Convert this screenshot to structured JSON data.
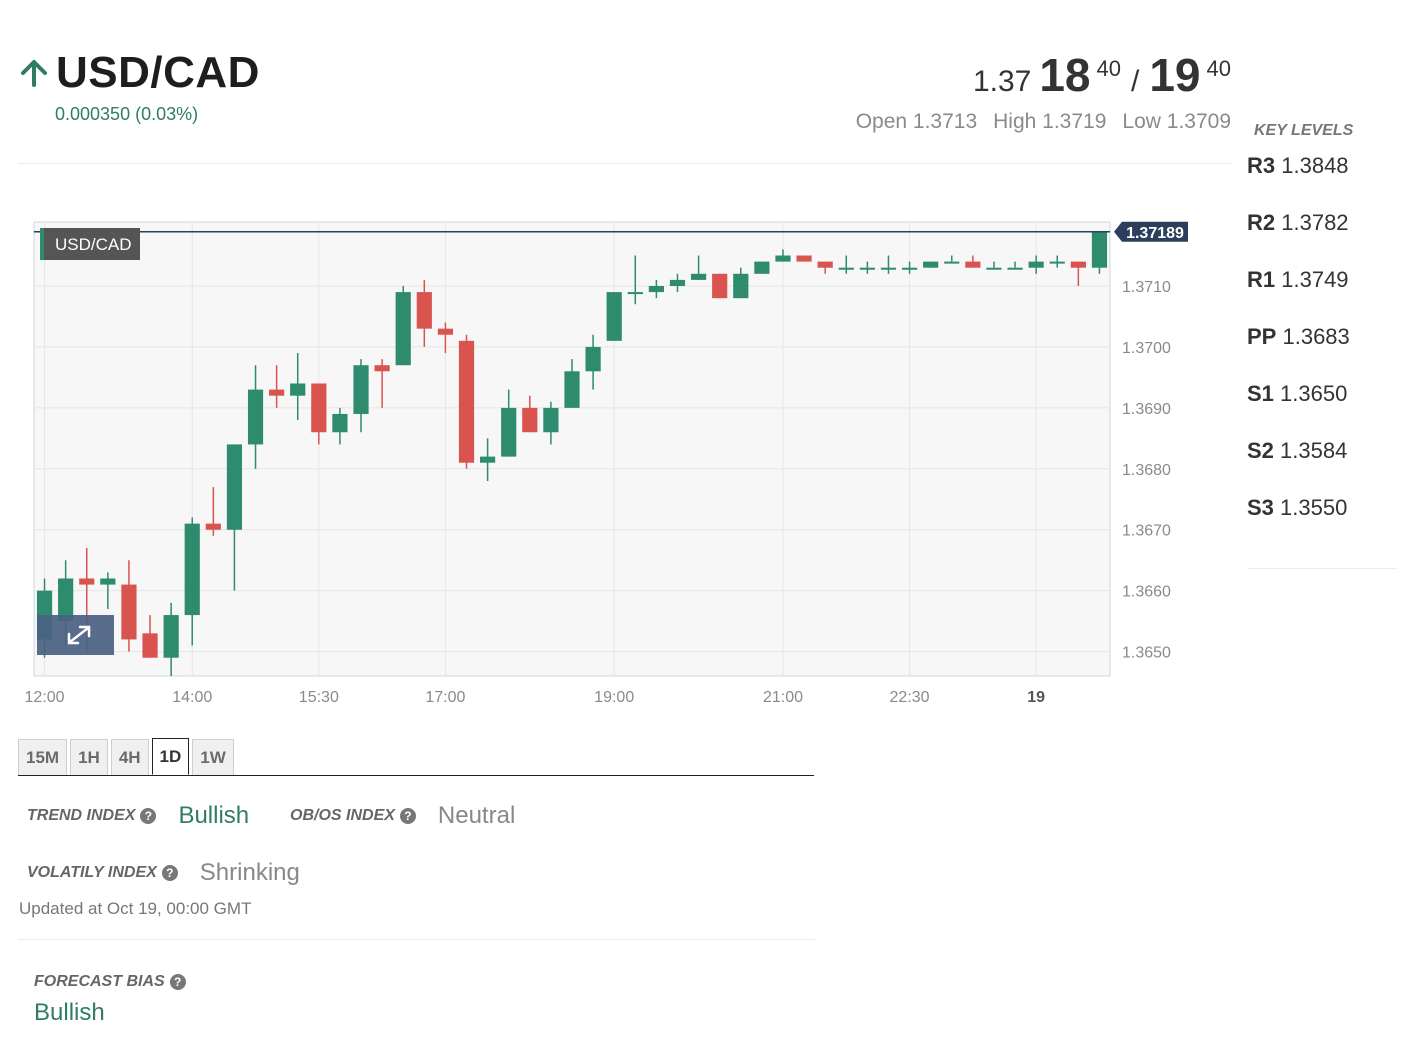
{
  "instrument": {
    "name": "USD/CAD",
    "direction_icon": "arrow-up-icon",
    "change": "0.000350 (0.03%)",
    "accent_color": "#2f7d63"
  },
  "quote": {
    "bid_prefix": "1.37",
    "bid_big": "18",
    "bid_sup": "40",
    "separator": "/",
    "ask_big": "19",
    "ask_sup": "40",
    "open": "Open 1.3713",
    "high": "High 1.3719",
    "low": "Low 1.3709"
  },
  "key_levels": {
    "title": "KEY LEVELS",
    "items": [
      {
        "name": "R3",
        "value": "1.3848"
      },
      {
        "name": "R2",
        "value": "1.3782"
      },
      {
        "name": "R1",
        "value": "1.3749"
      },
      {
        "name": "PP",
        "value": "1.3683"
      },
      {
        "name": "S1",
        "value": "1.3650"
      },
      {
        "name": "S2",
        "value": "1.3584"
      },
      {
        "name": "S3",
        "value": "1.3550"
      }
    ]
  },
  "chart": {
    "legend": "USD/CAD",
    "last_price": "1.37189",
    "up_color": "#2e8b6e",
    "down_color": "#d9534f",
    "expand_icon": "expand-icon"
  },
  "chart_data": {
    "type": "candlestick",
    "x_ticks": [
      "12:00",
      "14:00",
      "15:30",
      "17:00",
      "19:00",
      "21:00",
      "22:30",
      "19"
    ],
    "y_ticks": [
      "1.3710",
      "1.3700",
      "1.3690",
      "1.3680",
      "1.3670",
      "1.3660",
      "1.3650"
    ],
    "ylim": [
      1.3646,
      1.37205
    ],
    "last_price": 1.37189,
    "candles": [
      [
        1.3652,
        1.366,
        1.3662,
        1.3649
      ],
      [
        1.3655,
        1.3662,
        1.3665,
        1.3651
      ],
      [
        1.3662,
        1.3661,
        1.3667,
        1.365
      ],
      [
        1.3661,
        1.3662,
        1.3663,
        1.3657
      ],
      [
        1.3661,
        1.3652,
        1.3665,
        1.365
      ],
      [
        1.3653,
        1.3649,
        1.3656,
        1.3649
      ],
      [
        1.3649,
        1.3656,
        1.3658,
        1.3646
      ],
      [
        1.3656,
        1.3671,
        1.3672,
        1.3651
      ],
      [
        1.3671,
        1.367,
        1.3677,
        1.3669
      ],
      [
        1.367,
        1.3684,
        1.3684,
        1.366
      ],
      [
        1.3684,
        1.3693,
        1.3697,
        1.368
      ],
      [
        1.3693,
        1.3692,
        1.3697,
        1.369
      ],
      [
        1.3692,
        1.3694,
        1.3699,
        1.3688
      ],
      [
        1.3694,
        1.3686,
        1.3694,
        1.3684
      ],
      [
        1.3686,
        1.3689,
        1.369,
        1.3684
      ],
      [
        1.3689,
        1.3697,
        1.3698,
        1.3686
      ],
      [
        1.3697,
        1.3696,
        1.3698,
        1.369
      ],
      [
        1.3697,
        1.3709,
        1.371,
        1.3697
      ],
      [
        1.3709,
        1.3703,
        1.3711,
        1.37
      ],
      [
        1.3703,
        1.3702,
        1.3704,
        1.3699
      ],
      [
        1.3701,
        1.3681,
        1.3702,
        1.368
      ],
      [
        1.3681,
        1.3682,
        1.3685,
        1.3678
      ],
      [
        1.3682,
        1.369,
        1.3693,
        1.3682
      ],
      [
        1.369,
        1.3686,
        1.3692,
        1.3686
      ],
      [
        1.3686,
        1.369,
        1.3691,
        1.3684
      ],
      [
        1.369,
        1.3696,
        1.3698,
        1.369
      ],
      [
        1.3696,
        1.37,
        1.3702,
        1.3693
      ],
      [
        1.3701,
        1.3709,
        1.3709,
        1.3701
      ],
      [
        1.3709,
        1.3709,
        1.3715,
        1.3707
      ],
      [
        1.3709,
        1.371,
        1.3711,
        1.3708
      ],
      [
        1.371,
        1.3711,
        1.3712,
        1.3709
      ],
      [
        1.3711,
        1.3712,
        1.3715,
        1.3711
      ],
      [
        1.3712,
        1.3708,
        1.3712,
        1.3708
      ],
      [
        1.3708,
        1.3712,
        1.3713,
        1.3708
      ],
      [
        1.3712,
        1.3714,
        1.3714,
        1.3712
      ],
      [
        1.3714,
        1.3715,
        1.3716,
        1.3714
      ],
      [
        1.3715,
        1.3714,
        1.3715,
        1.3714
      ],
      [
        1.3714,
        1.3713,
        1.3714,
        1.3712
      ],
      [
        1.3713,
        1.3713,
        1.3715,
        1.3712
      ],
      [
        1.3713,
        1.3713,
        1.3714,
        1.3712
      ],
      [
        1.3713,
        1.3713,
        1.3715,
        1.3712
      ],
      [
        1.3713,
        1.3713,
        1.3714,
        1.3712
      ],
      [
        1.3713,
        1.3714,
        1.3714,
        1.3713
      ],
      [
        1.3714,
        1.3714,
        1.3715,
        1.3714
      ],
      [
        1.3714,
        1.3713,
        1.3715,
        1.3713
      ],
      [
        1.3713,
        1.3713,
        1.3714,
        1.3713
      ],
      [
        1.3713,
        1.3713,
        1.3714,
        1.3713
      ],
      [
        1.3713,
        1.3714,
        1.3715,
        1.3712
      ],
      [
        1.3714,
        1.3714,
        1.3715,
        1.3713
      ],
      [
        1.3714,
        1.3713,
        1.3714,
        1.371
      ],
      [
        1.3713,
        1.3719,
        1.3719,
        1.3712
      ]
    ]
  },
  "timeframes": {
    "items": [
      "15M",
      "1H",
      "4H",
      "1D",
      "1W"
    ],
    "active": "1D"
  },
  "indicators": {
    "trend_label": "TREND INDEX",
    "trend_value": "Bullish",
    "obos_label": "OB/OS INDEX",
    "obos_value": "Neutral",
    "volatility_label": "VOLATILY INDEX",
    "volatility_value": "Shrinking",
    "help_icon": "help-icon",
    "updated": "Updated at Oct 19, 00:00 GMT"
  },
  "forecast": {
    "label": "FORECAST BIAS",
    "value": "Bullish"
  }
}
